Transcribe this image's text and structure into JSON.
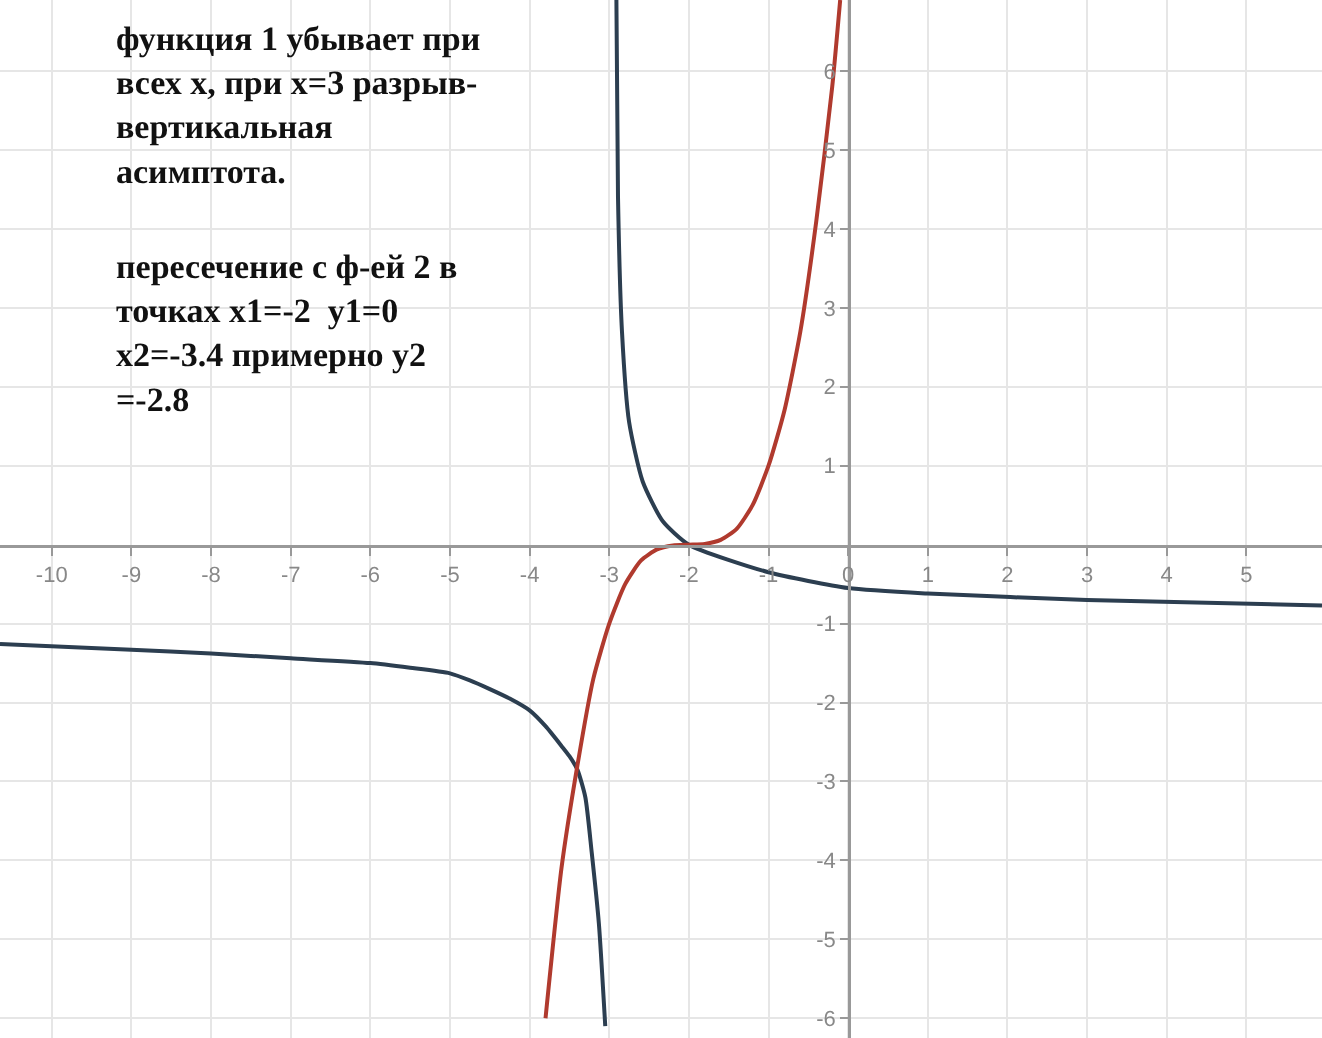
{
  "chart_data": {
    "type": "line",
    "annotations": [
      "функция 1 убывает при\nвсех х, при х=3 разрыв-\nвертикальная\nасимптота.",
      "пересечение с ф-ей 2 в\nточках х1=-2  у1=0\nх2=-3.4 примерно у2\n=-2.8"
    ],
    "series": [
      {
        "color": "#2c3e50",
        "x": [
          -10.65,
          -9,
          -8,
          -7,
          -6,
          -5.5,
          -5,
          -4.75,
          -4.5,
          -4.25,
          -4,
          -3.8,
          -3.6,
          -3.5,
          -3.4,
          -3.3,
          -3.22,
          -3.13,
          -3.05
        ],
        "values": [
          -1.26,
          -1.33,
          -1.38,
          -1.44,
          -1.5,
          -1.56,
          -1.63,
          -1.72,
          -1.83,
          -1.95,
          -2.1,
          -2.3,
          -2.55,
          -2.68,
          -2.85,
          -3.2,
          -3.9,
          -4.8,
          -6.1
        ]
      },
      {
        "color": "#2c3e50",
        "x": [
          -2.91,
          -2.89,
          -2.84,
          -2.75,
          -2.58,
          -2.33,
          -2,
          -1,
          0,
          1,
          3,
          5.95
        ],
        "values": [
          6.9,
          4.4,
          2.7,
          1.55,
          0.8,
          0.3,
          0,
          -0.35,
          -0.55,
          -0.62,
          -0.7,
          -0.77
        ]
      },
      {
        "color": "#b03a2e",
        "x": [
          -3.8,
          -3.6,
          -3.4,
          -3.2,
          -3,
          -2.8,
          -2.6,
          -2.4,
          -2.2,
          -2,
          -1.8,
          -1.6,
          -1.4,
          -1.2,
          -1,
          -0.8,
          -0.6,
          -0.4,
          -0.2,
          -0.1
        ],
        "values": [
          -6,
          -4.1,
          -2.8,
          -1.7,
          -1,
          -0.5,
          -0.2,
          -0.06,
          -0.01,
          0,
          0.01,
          0.06,
          0.2,
          0.5,
          1,
          1.7,
          2.7,
          4.1,
          5.8,
          6.9
        ]
      }
    ],
    "xlim": [
      -10.65,
      5.95
    ],
    "ylim": [
      -6.25,
      6.9
    ],
    "xticks": [
      -10,
      -9,
      -8,
      -7,
      -6,
      -5,
      -4,
      -3,
      -2,
      -1,
      0,
      1,
      2,
      3,
      4,
      5
    ],
    "yticks": [
      -6,
      -5,
      -4,
      -3,
      -2,
      -1,
      1,
      2,
      3,
      4,
      5,
      6
    ],
    "grid": true,
    "legend": false,
    "marker": "none",
    "line_style": "solid"
  }
}
